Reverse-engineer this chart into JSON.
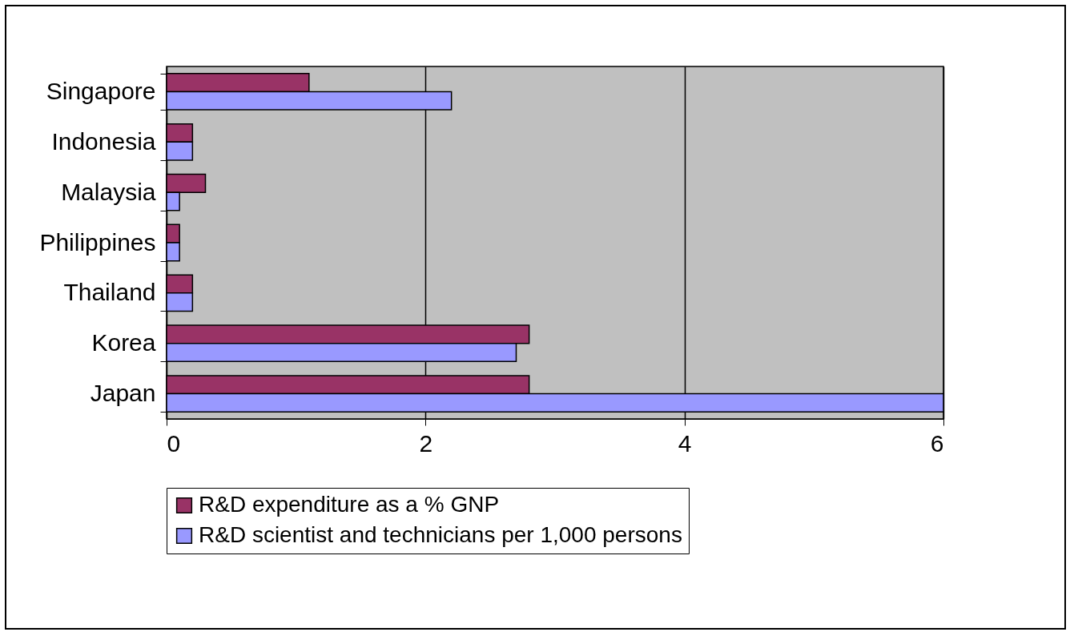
{
  "chart_data": {
    "type": "bar",
    "orientation": "horizontal",
    "categories": [
      "Singapore",
      "Indonesia",
      "Malaysia",
      "Philippines",
      "Thailand",
      "Korea",
      "Japan"
    ],
    "series": [
      {
        "name": "R&D expenditure as a % GNP",
        "color": "#993366",
        "values": [
          1.1,
          0.2,
          0.3,
          0.1,
          0.2,
          2.8,
          2.8
        ]
      },
      {
        "name": "R&D scientist and technicians per 1,000 persons",
        "color": "#9999ff",
        "values": [
          2.2,
          0.2,
          0.1,
          0.1,
          0.2,
          2.7,
          6.0
        ]
      }
    ],
    "xlim": [
      0,
      6
    ],
    "xticks": [
      0,
      2,
      4,
      6
    ],
    "grid": "x",
    "legend": "bottom"
  }
}
